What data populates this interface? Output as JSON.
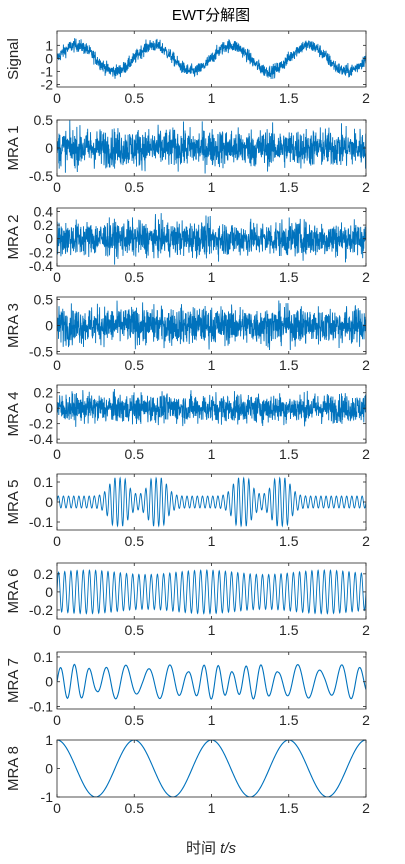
{
  "figure": {
    "title": "EWT分解图",
    "xlabel_prefix": "时间 ",
    "xlabel_var": "t/s",
    "line_color": "#0072BD",
    "axis_color": "#262626"
  },
  "chart_data": [
    {
      "type": "line",
      "ylabel": "Signal",
      "xlim": [
        0,
        2
      ],
      "xticks": [
        0,
        0.5,
        1,
        1.5,
        2
      ],
      "xticklabels": [
        "0",
        "0.5",
        "1",
        "1.5",
        "2"
      ],
      "ylim": [
        -2.2,
        2.1
      ],
      "yticks": [
        1,
        0,
        -1,
        -2
      ],
      "yticklabels": [
        "1",
        "0",
        "-1",
        "-2"
      ],
      "signal": {
        "kind": "sine_plus_noise",
        "amplitude": 1.0,
        "frequency_hz": 2,
        "phase": "sin",
        "noise_amplitude": 0.45
      },
      "x_range_sampled": [
        0,
        2
      ]
    },
    {
      "type": "line",
      "ylabel": "MRA 1",
      "xlim": [
        0,
        2
      ],
      "xticks": [
        0,
        0.5,
        1,
        1.5,
        2
      ],
      "xticklabels": [
        "0",
        "0.5",
        "1",
        "1.5",
        "2"
      ],
      "ylim": [
        -0.5,
        0.5
      ],
      "yticks": [
        0.5,
        0,
        -0.5
      ],
      "yticklabels": [
        "0.5",
        "0",
        "-0.5"
      ],
      "signal": {
        "kind": "noise",
        "amplitude": 0.4
      }
    },
    {
      "type": "line",
      "ylabel": "MRA 2",
      "xlim": [
        0,
        2
      ],
      "xticks": [
        0,
        0.5,
        1,
        1.5,
        2
      ],
      "xticklabels": [
        "0",
        "0.5",
        "1",
        "1.5",
        "2"
      ],
      "ylim": [
        -0.4,
        0.45
      ],
      "yticks": [
        0.4,
        0.2,
        0,
        -0.2,
        -0.4
      ],
      "yticklabels": [
        "0.4",
        "0.2",
        "0",
        "-0.2",
        "-0.4"
      ],
      "signal": {
        "kind": "noise",
        "amplitude": 0.3
      }
    },
    {
      "type": "line",
      "ylabel": "MRA 3",
      "xlim": [
        0,
        2
      ],
      "xticks": [
        0,
        0.5,
        1,
        1.5,
        2
      ],
      "xticklabels": [
        "0",
        "0.5",
        "1",
        "1.5",
        "2"
      ],
      "ylim": [
        -0.55,
        0.55
      ],
      "yticks": [
        0.5,
        0,
        -0.5
      ],
      "yticklabels": [
        "0.5",
        "0",
        "-0.5"
      ],
      "signal": {
        "kind": "noise",
        "amplitude": 0.42
      }
    },
    {
      "type": "line",
      "ylabel": "MRA 4",
      "xlim": [
        0,
        2
      ],
      "xticks": [
        0,
        0.5,
        1,
        1.5,
        2
      ],
      "xticklabels": [
        "0",
        "0.5",
        "1",
        "1.5",
        "2"
      ],
      "ylim": [
        -0.45,
        0.3
      ],
      "yticks": [
        0.2,
        0,
        -0.2,
        -0.4
      ],
      "yticklabels": [
        "0.2",
        "0",
        "-0.2",
        "-0.4"
      ],
      "signal": {
        "kind": "noise",
        "amplitude": 0.22
      }
    },
    {
      "type": "line",
      "ylabel": "MRA 5",
      "xlim": [
        0,
        2
      ],
      "xticks": [
        0,
        0.5,
        1,
        1.5,
        2
      ],
      "xticklabels": [
        "0",
        "0.5",
        "1",
        "1.5",
        "2"
      ],
      "ylim": [
        -0.14,
        0.14
      ],
      "yticks": [
        0.1,
        0,
        -0.1
      ],
      "yticklabels": [
        "0.1",
        "0",
        "-0.1"
      ],
      "signal": {
        "kind": "modulated",
        "amplitude": 0.12,
        "carrier_hz": 30,
        "envelope_peaks": [
          0.4,
          0.65,
          1.2,
          1.45
        ]
      }
    },
    {
      "type": "line",
      "ylabel": "MRA 6",
      "xlim": [
        0,
        2
      ],
      "xticks": [
        0,
        0.5,
        1,
        1.5,
        2
      ],
      "xticklabels": [
        "0",
        "0.5",
        "1",
        "1.5",
        "2"
      ],
      "ylim": [
        -0.3,
        0.32
      ],
      "yticks": [
        0.2,
        0,
        -0.2
      ],
      "yticklabels": [
        "0.2",
        "0",
        "-0.2"
      ],
      "signal": {
        "kind": "oscillation",
        "amplitude": 0.24,
        "frequency_hz": 25
      }
    },
    {
      "type": "line",
      "ylabel": "MRA 7",
      "xlim": [
        0,
        2
      ],
      "xticks": [
        0,
        0.5,
        1,
        1.5,
        2
      ],
      "xticklabels": [
        "0",
        "0.5",
        "1",
        "1.5",
        "2"
      ],
      "ylim": [
        -0.11,
        0.12
      ],
      "yticks": [
        0.1,
        0,
        -0.1
      ],
      "yticklabels": [
        "0.1",
        "0",
        "-0.1"
      ],
      "signal": {
        "kind": "oscillation_varying",
        "amplitude": 0.07,
        "frequency_hz": 9
      }
    },
    {
      "type": "line",
      "ylabel": "MRA 8",
      "xlim": [
        0,
        2
      ],
      "xticks": [
        0,
        0.5,
        1,
        1.5,
        2
      ],
      "xticklabels": [
        "0",
        "0.5",
        "1",
        "1.5",
        "2"
      ],
      "ylim": [
        -1,
        1
      ],
      "yticks": [
        1,
        0,
        -1
      ],
      "yticklabels": [
        "1",
        "0",
        "-1"
      ],
      "signal": {
        "kind": "sine",
        "amplitude": 1.0,
        "frequency_hz": 2,
        "phase": "cos"
      }
    }
  ]
}
